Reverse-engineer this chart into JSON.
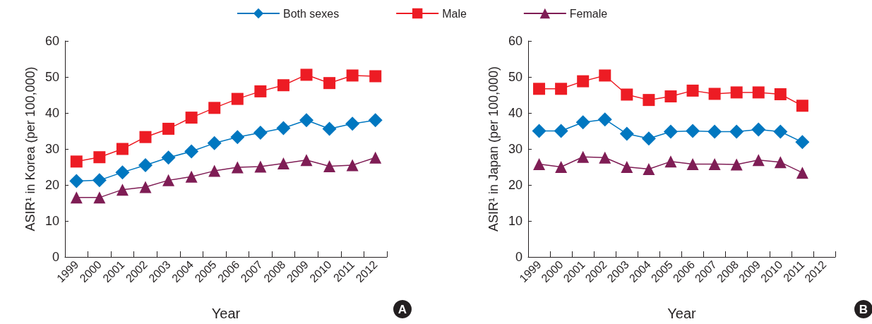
{
  "chart_data": [
    {
      "type": "line",
      "xlabel": "Year",
      "ylabel": "ASIR¹ in Korea (per 100,000)",
      "categories": [
        "1999",
        "2000",
        "2001",
        "2002",
        "2003",
        "2004",
        "2005",
        "2006",
        "2007",
        "2008",
        "2009",
        "2010",
        "2011",
        "2012"
      ],
      "ylim": [
        0,
        60
      ],
      "yticks": [
        0,
        10,
        20,
        30,
        40,
        50,
        60
      ],
      "grid": false,
      "legend": "top",
      "annotations": [
        "A"
      ],
      "series": [
        {
          "name": "Both sexes",
          "color": "#0077c0",
          "marker": "diamond",
          "values": [
            21.1,
            21.3,
            23.5,
            25.5,
            27.6,
            29.3,
            31.6,
            33.3,
            34.5,
            35.8,
            38.0,
            35.6,
            37.0,
            38.0
          ]
        },
        {
          "name": "Male",
          "color": "#ed1c24",
          "marker": "square",
          "values": [
            26.5,
            27.7,
            30.0,
            33.3,
            35.6,
            38.7,
            41.4,
            43.9,
            46.0,
            47.7,
            50.6,
            48.3,
            50.4,
            50.2
          ]
        },
        {
          "name": "Female",
          "color": "#7f1d55",
          "marker": "triangle",
          "values": [
            16.5,
            16.5,
            18.7,
            19.4,
            21.3,
            22.3,
            23.9,
            24.9,
            25.1,
            26.0,
            26.9,
            25.2,
            25.5,
            27.6
          ]
        }
      ]
    },
    {
      "type": "line",
      "xlabel": "Year",
      "ylabel": "ASIR¹ in Japan (per 100,000)",
      "categories": [
        "1999",
        "2000",
        "2001",
        "2002",
        "2003",
        "2004",
        "2005",
        "2006",
        "2007",
        "2008",
        "2009",
        "2010",
        "2011",
        "2012"
      ],
      "ylim": [
        0,
        60
      ],
      "yticks": [
        0,
        10,
        20,
        30,
        40,
        50,
        60
      ],
      "grid": false,
      "legend": false,
      "annotations": [
        "B"
      ],
      "series": [
        {
          "color": "#0077c0",
          "marker": "diamond",
          "values": [
            35.0,
            35.0,
            37.4,
            38.2,
            34.2,
            32.9,
            34.8,
            35.0,
            34.8,
            34.8,
            35.4,
            34.8,
            31.9,
            null
          ]
        },
        {
          "color": "#ed1c24",
          "marker": "square",
          "values": [
            46.7,
            46.7,
            48.8,
            50.4,
            45.1,
            43.6,
            44.6,
            46.2,
            45.3,
            45.7,
            45.7,
            45.2,
            42.0,
            null
          ]
        },
        {
          "color": "#7f1d55",
          "marker": "triangle",
          "values": [
            25.8,
            25.0,
            27.8,
            27.6,
            25.0,
            24.4,
            26.5,
            25.8,
            25.8,
            25.7,
            26.9,
            26.3,
            23.4,
            null
          ]
        }
      ]
    }
  ]
}
